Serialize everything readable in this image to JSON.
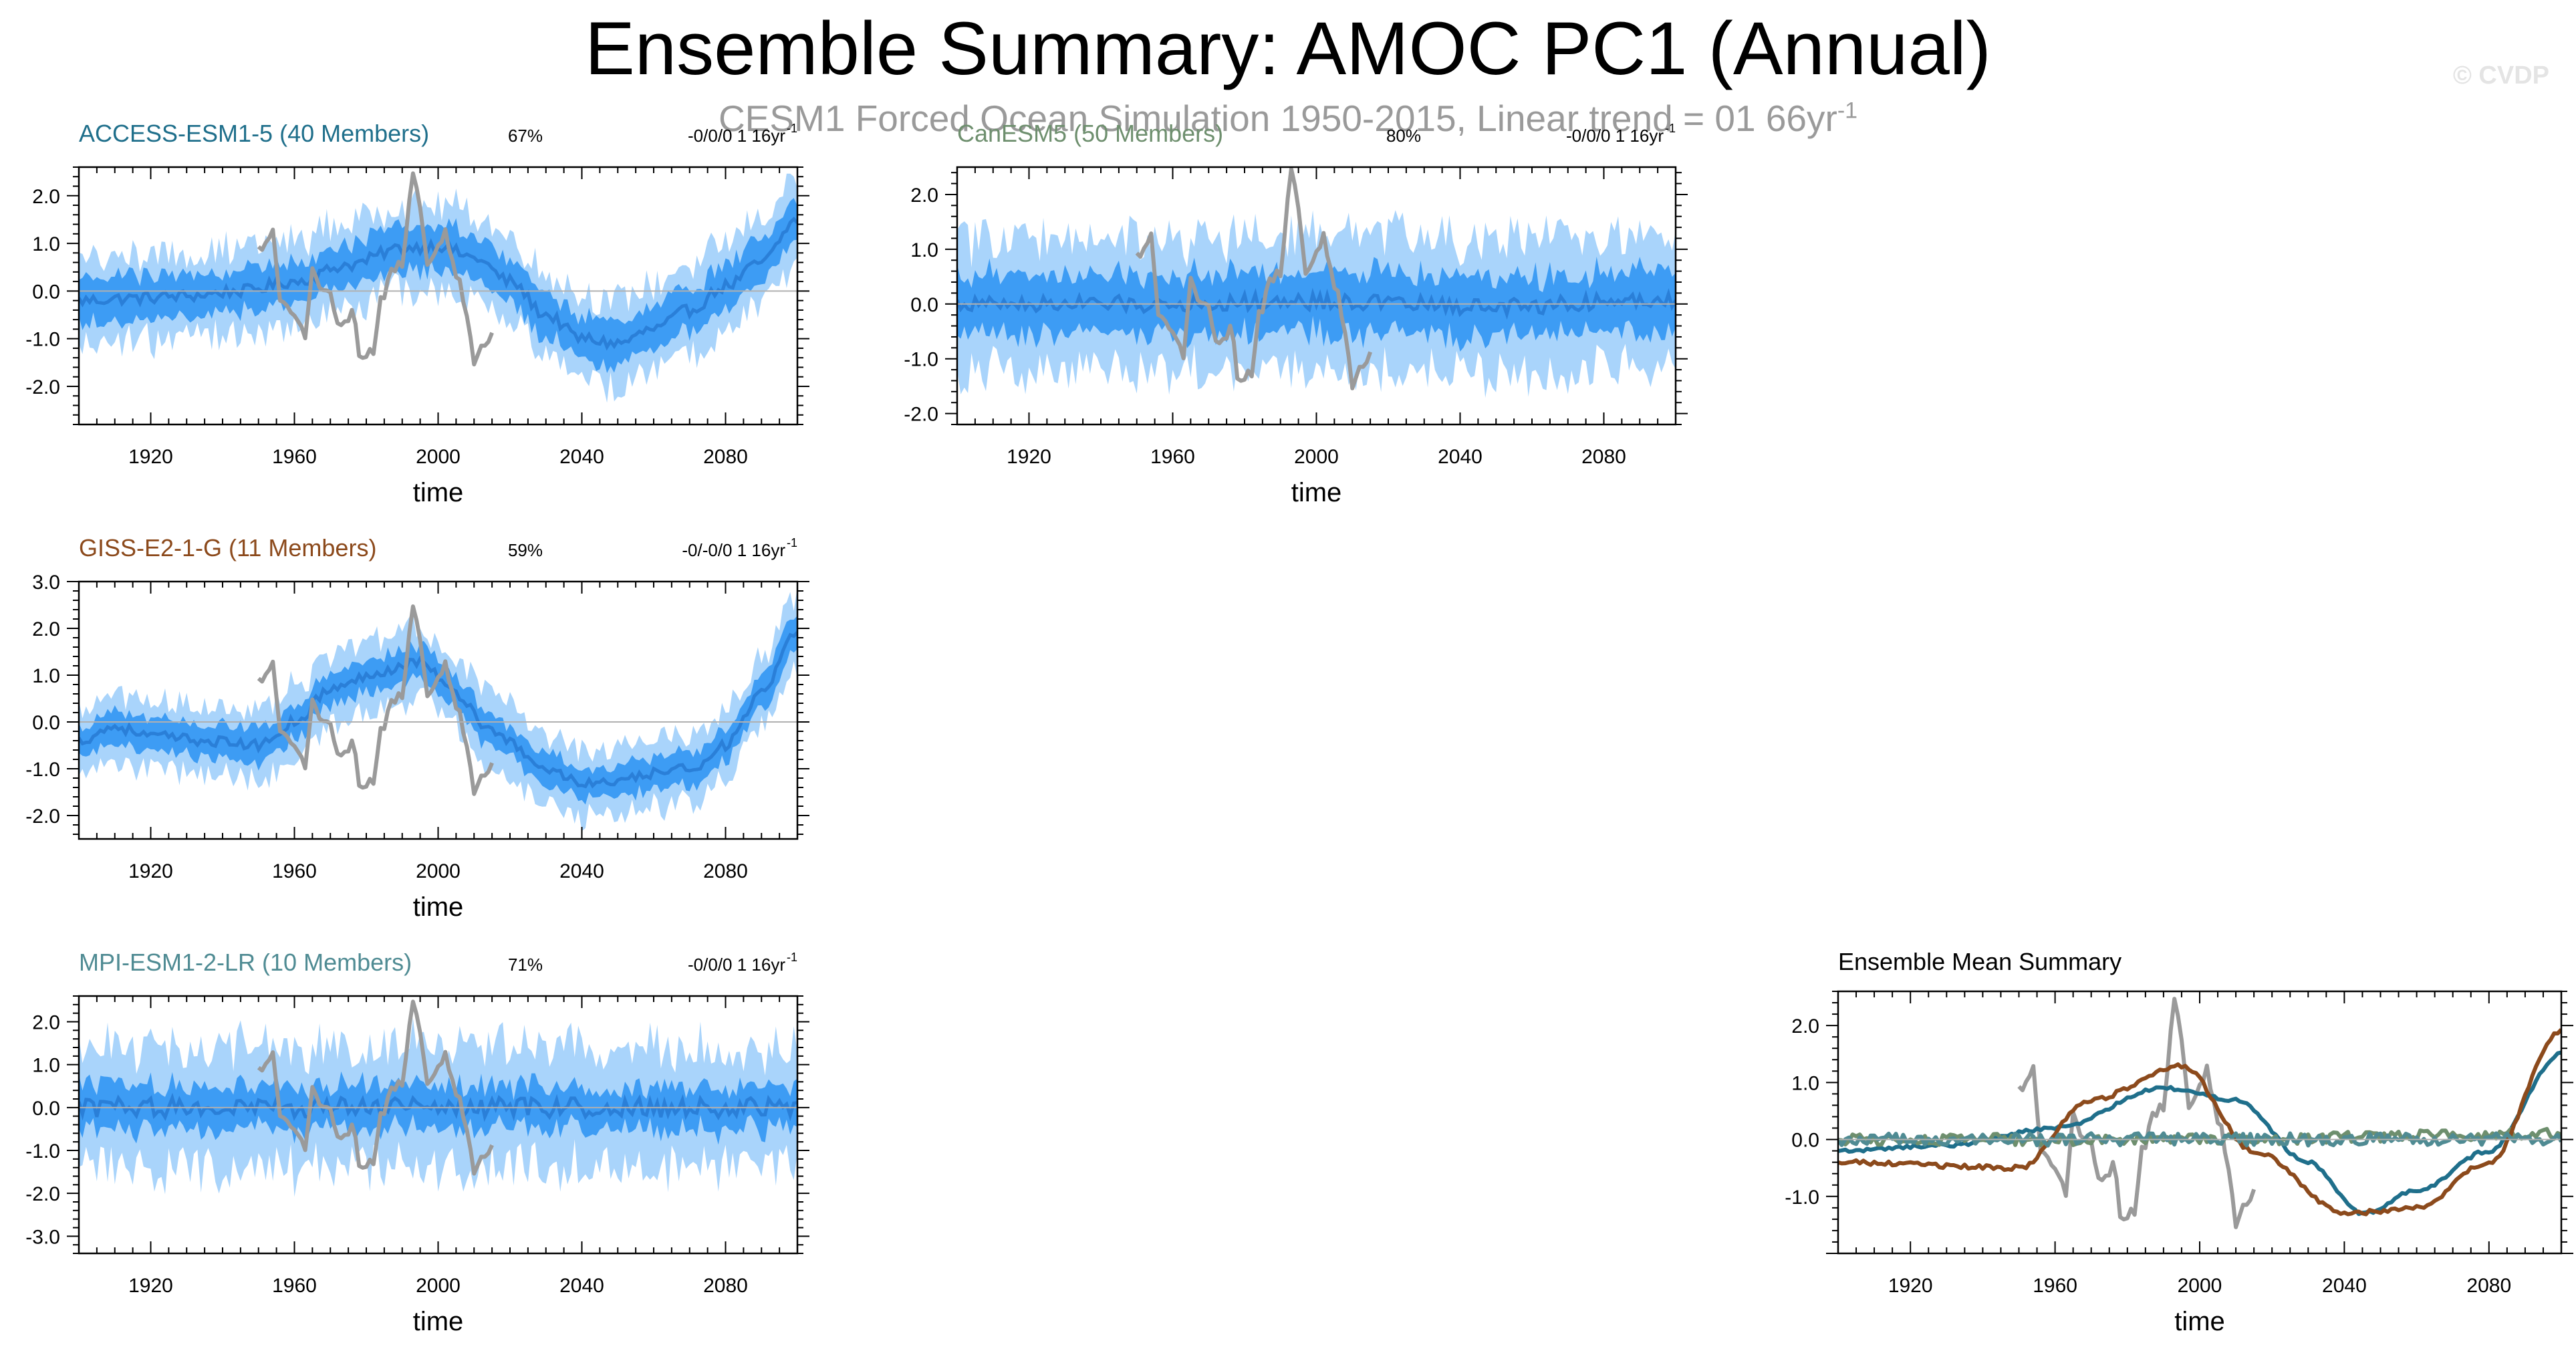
{
  "title": "Ensemble Summary: AMOC PC1 (Annual)",
  "subtitle": {
    "text": "CESM1 Forced Ocean Simulation 1950-2015, Linear trend = 01 66yr",
    "exponent": "-1"
  },
  "watermark": "© CVDP",
  "colors": {
    "outer_band": "#a9d4fb",
    "inner_band": "#3d9cf4",
    "ens_mean": "#2a7fd8",
    "observation": "#9a9a9a",
    "zero_line": "#b0b0b0",
    "access": "#1f6f8b",
    "canesm": "#6e8f6e",
    "giss": "#8c4a1c",
    "mpi": "#4f8b93"
  },
  "chart_data": [
    {
      "id": "access",
      "type": "area",
      "title": "ACCESS-ESM1-5 (40 Members)",
      "pct": "67%",
      "trend": "-0/0/0 1 16yr",
      "trend_exp": "-1",
      "xlabel": "time",
      "xlim": [
        1900,
        2100
      ],
      "ylim": [
        -2.8,
        2.6
      ],
      "xticks": [
        1920,
        1960,
        2000,
        2040,
        2080
      ],
      "xtick_labels": [
        "1920",
        "1960",
        "2000",
        "2040",
        "2080"
      ],
      "yticks": [
        2.0,
        1.0,
        0.0,
        -1.0,
        -2.0
      ],
      "ytick_labels": [
        "2.0",
        "1.0",
        "0.0",
        "-1.0",
        "-2.0"
      ],
      "title_color": "#1f6f8b",
      "mean_knots": [
        [
          1900,
          -0.2
        ],
        [
          1915,
          -0.15
        ],
        [
          1930,
          -0.1
        ],
        [
          1945,
          0.0
        ],
        [
          1960,
          0.2
        ],
        [
          1975,
          0.55
        ],
        [
          1990,
          0.9
        ],
        [
          2000,
          0.95
        ],
        [
          2010,
          0.7
        ],
        [
          2020,
          0.2
        ],
        [
          2030,
          -0.5
        ],
        [
          2040,
          -1.0
        ],
        [
          2050,
          -1.1
        ],
        [
          2060,
          -0.8
        ],
        [
          2070,
          -0.4
        ],
        [
          2080,
          0.1
        ],
        [
          2090,
          0.6
        ],
        [
          2100,
          1.5
        ]
      ],
      "inner_half": 0.45,
      "outer_half": 0.9,
      "noise": 0.25
    },
    {
      "id": "canesm",
      "type": "area",
      "title": "CanESM5 (50 Members)",
      "pct": "80%",
      "trend": "-0/0/0 1 16yr",
      "trend_exp": "-1",
      "xlabel": "time",
      "xlim": [
        1900,
        2100
      ],
      "ylim": [
        -2.2,
        2.5
      ],
      "xticks": [
        1920,
        1960,
        2000,
        2040,
        2080
      ],
      "xtick_labels": [
        "1920",
        "1960",
        "2000",
        "2040",
        "2080"
      ],
      "yticks": [
        2.0,
        1.0,
        0.0,
        -1.0,
        -2.0
      ],
      "ytick_labels": [
        "2.0",
        "1.0",
        "0.0",
        "-1.0",
        "-2.0"
      ],
      "title_color": "#6e8f6e",
      "mean_knots": [
        [
          1900,
          0.0
        ],
        [
          1950,
          0.0
        ],
        [
          2000,
          0.05
        ],
        [
          2050,
          -0.05
        ],
        [
          2100,
          0.1
        ]
      ],
      "inner_half": 0.55,
      "outer_half": 1.2,
      "noise": 0.3
    },
    {
      "id": "giss",
      "type": "area",
      "title": "GISS-E2-1-G (11 Members)",
      "pct": "59%",
      "trend": "-0/-0/0 1 16yr",
      "trend_exp": "-1",
      "xlabel": "time",
      "xlim": [
        1900,
        2100
      ],
      "ylim": [
        -2.5,
        3.0
      ],
      "xticks": [
        1920,
        1960,
        2000,
        2040,
        2080
      ],
      "xtick_labels": [
        "1920",
        "1960",
        "2000",
        "2040",
        "2080"
      ],
      "yticks": [
        3.0,
        2.0,
        1.0,
        0.0,
        -1.0,
        -2.0
      ],
      "ytick_labels": [
        "3.0",
        "2.0",
        "1.0",
        "0.0",
        "-1.0",
        "-2.0"
      ],
      "title_color": "#8c4a1c",
      "mean_knots": [
        [
          1900,
          -0.4
        ],
        [
          1910,
          -0.1
        ],
        [
          1920,
          -0.3
        ],
        [
          1935,
          -0.4
        ],
        [
          1950,
          -0.5
        ],
        [
          1960,
          0.0
        ],
        [
          1970,
          0.7
        ],
        [
          1985,
          1.1
        ],
        [
          1995,
          1.3
        ],
        [
          2005,
          0.6
        ],
        [
          2015,
          -0.2
        ],
        [
          2030,
          -1.0
        ],
        [
          2040,
          -1.3
        ],
        [
          2050,
          -1.3
        ],
        [
          2060,
          -1.1
        ],
        [
          2070,
          -1.0
        ],
        [
          2080,
          -0.5
        ],
        [
          2090,
          0.6
        ],
        [
          2100,
          1.9
        ]
      ],
      "inner_half": 0.35,
      "outer_half": 0.75,
      "noise": 0.22
    },
    {
      "id": "mpi",
      "type": "area",
      "title": "MPI-ESM1-2-LR (10 Members)",
      "pct": "71%",
      "trend": "-0/0/0 1 16yr",
      "trend_exp": "-1",
      "xlabel": "time",
      "xlim": [
        1900,
        2100
      ],
      "ylim": [
        -3.4,
        2.6
      ],
      "xticks": [
        1920,
        1960,
        2000,
        2040,
        2080
      ],
      "xtick_labels": [
        "1920",
        "1960",
        "2000",
        "2040",
        "2080"
      ],
      "yticks": [
        2.0,
        1.0,
        0.0,
        -1.0,
        -2.0,
        -3.0
      ],
      "ytick_labels": [
        "2.0",
        "1.0",
        "0.0",
        "-1.0",
        "-2.0",
        "-3.0"
      ],
      "title_color": "#4f8b93",
      "mean_knots": [
        [
          1900,
          0.0
        ],
        [
          2000,
          0.0
        ],
        [
          2100,
          0.0
        ]
      ],
      "inner_half": 0.5,
      "outer_half": 1.4,
      "noise": 0.45
    },
    {
      "id": "summary",
      "type": "line",
      "title": "Ensemble Mean Summary",
      "xlabel": "time",
      "xlim": [
        1900,
        2100
      ],
      "ylim": [
        -2.0,
        2.6
      ],
      "xticks": [
        1920,
        1960,
        2000,
        2040,
        2080
      ],
      "xtick_labels": [
        "1920",
        "1960",
        "2000",
        "2040",
        "2080"
      ],
      "yticks": [
        2.0,
        1.0,
        0.0,
        -1.0
      ],
      "ytick_labels": [
        "2.0",
        "1.0",
        "0.0",
        "-1.0"
      ],
      "title_color": "#000000",
      "series": [
        {
          "name": "ACCESS-ESM1-5",
          "color": "#1f6f8b",
          "mean_knots": [
            [
              1900,
              -0.2
            ],
            [
              1930,
              -0.1
            ],
            [
              1960,
              0.2
            ],
            [
              1990,
              0.9
            ],
            [
              2010,
              0.7
            ],
            [
              2030,
              -0.4
            ],
            [
              2045,
              -1.3
            ],
            [
              2060,
              -0.9
            ],
            [
              2080,
              -0.2
            ],
            [
              2100,
              1.5
            ]
          ],
          "noise": 0.06
        },
        {
          "name": "CanESM5",
          "color": "#6e8f6e",
          "mean_knots": [
            [
              1900,
              0.0
            ],
            [
              2000,
              0.0
            ],
            [
              2100,
              0.1
            ]
          ],
          "noise": 0.2
        },
        {
          "name": "GISS-E2-1-G",
          "color": "#8c4a1c",
          "mean_knots": [
            [
              1900,
              -0.4
            ],
            [
              1950,
              -0.5
            ],
            [
              1970,
              0.7
            ],
            [
              1995,
              1.3
            ],
            [
              2015,
              -0.2
            ],
            [
              2040,
              -1.3
            ],
            [
              2060,
              -1.2
            ],
            [
              2080,
              -0.4
            ],
            [
              2100,
              1.9
            ]
          ],
          "noise": 0.08
        },
        {
          "name": "MPI-ESM1-2-LR",
          "color": "#4f8b93",
          "mean_knots": [
            [
              1900,
              0.0
            ],
            [
              2100,
              0.0
            ]
          ],
          "noise": 0.22
        }
      ]
    }
  ],
  "observation": {
    "name": "CESM1 Forced Ocean Simulation",
    "years": [
      1950,
      2015
    ],
    "knots": [
      [
        1950,
        0.9
      ],
      [
        1954,
        1.2
      ],
      [
        1956,
        -0.2
      ],
      [
        1960,
        -0.5
      ],
      [
        1963,
        -0.9
      ],
      [
        1965,
        0.5
      ],
      [
        1967,
        0.1
      ],
      [
        1970,
        0.0
      ],
      [
        1972,
        -0.7
      ],
      [
        1976,
        -0.5
      ],
      [
        1979,
        -1.5
      ],
      [
        1982,
        -1.2
      ],
      [
        1984,
        -0.2
      ],
      [
        1987,
        0.4
      ],
      [
        1990,
        0.6
      ],
      [
        1993,
        2.5
      ],
      [
        1995,
        1.8
      ],
      [
        1997,
        0.5
      ],
      [
        1999,
        0.8
      ],
      [
        2002,
        1.2
      ],
      [
        2005,
        0.4
      ],
      [
        2008,
        -0.6
      ],
      [
        2010,
        -1.5
      ],
      [
        2012,
        -1.2
      ],
      [
        2015,
        -0.9
      ]
    ]
  }
}
